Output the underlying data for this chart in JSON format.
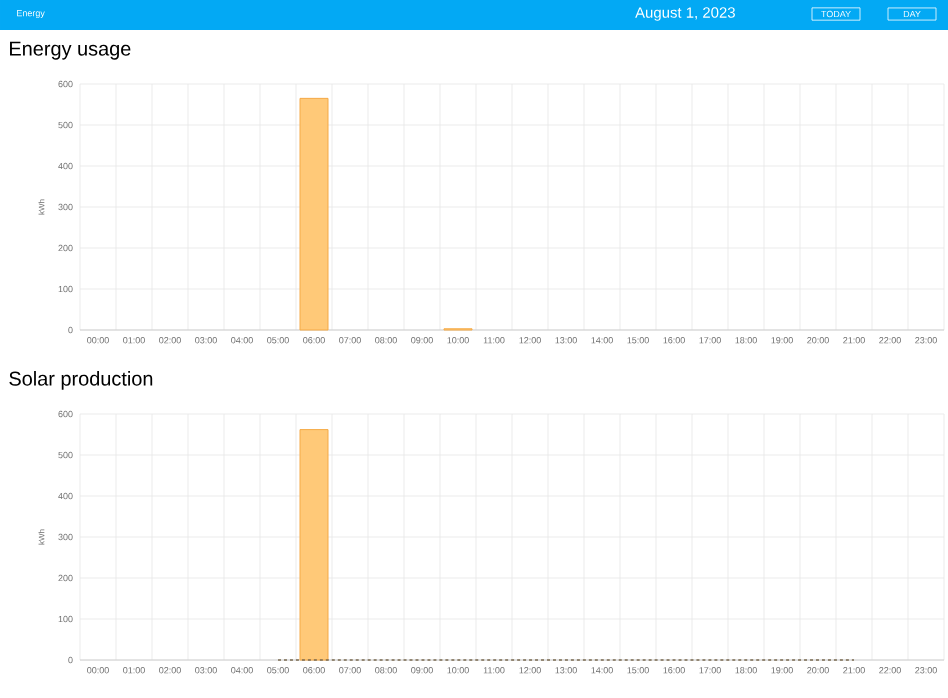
{
  "chart_data": [
    {
      "type": "bar",
      "title": "Energy usage",
      "ylabel": "kWh",
      "annotations": [
        "Energy",
        "August 1, 2023",
        "TODAY",
        "DAY"
      ],
      "categories": [
        "00:00",
        "01:00",
        "02:00",
        "03:00",
        "04:00",
        "05:00",
        "06:00",
        "07:00",
        "08:00",
        "09:00",
        "10:00",
        "11:00",
        "12:00",
        "13:00",
        "14:00",
        "15:00",
        "16:00",
        "17:00",
        "18:00",
        "19:00",
        "20:00",
        "21:00",
        "22:00",
        "23:00"
      ],
      "series": [
        {
          "color": "#ffc978",
          "values": [
            null,
            null,
            null,
            null,
            null,
            null,
            565,
            null,
            null,
            null,
            3,
            null,
            null,
            null,
            null,
            null,
            null,
            null,
            null,
            null,
            null,
            null,
            null,
            null
          ]
        }
      ],
      "ylim": [
        0,
        600
      ],
      "yticks": [
        0,
        100,
        200,
        300,
        400,
        500,
        600
      ],
      "grid": true
    },
    {
      "type": "bar",
      "title": "Solar production",
      "ylabel": "kWh",
      "categories": [
        "00:00",
        "01:00",
        "02:00",
        "03:00",
        "04:00",
        "05:00",
        "06:00",
        "07:00",
        "08:00",
        "09:00",
        "10:00",
        "11:00",
        "12:00",
        "13:00",
        "14:00",
        "15:00",
        "16:00",
        "17:00",
        "18:00",
        "19:00",
        "20:00",
        "21:00",
        "22:00",
        "23:00"
      ],
      "series": [
        {
          "color": "#ffc978",
          "values": [
            null,
            null,
            null,
            null,
            null,
            null,
            562,
            null,
            null,
            null,
            null,
            null,
            null,
            null,
            null,
            null,
            null,
            null,
            null,
            null,
            null,
            null,
            null,
            null
          ]
        },
        {
          "type": "line",
          "line_style": "dashed",
          "color": "#7a6a50",
          "values": [
            null,
            null,
            null,
            null,
            null,
            0,
            0,
            0,
            0,
            0,
            0,
            0,
            0,
            0,
            0,
            0,
            0,
            0,
            0,
            0,
            0,
            0,
            null,
            null
          ]
        }
      ],
      "ylim": [
        0,
        600
      ],
      "yticks": [
        0,
        100,
        200,
        300,
        400,
        500,
        600
      ],
      "grid": true
    }
  ]
}
